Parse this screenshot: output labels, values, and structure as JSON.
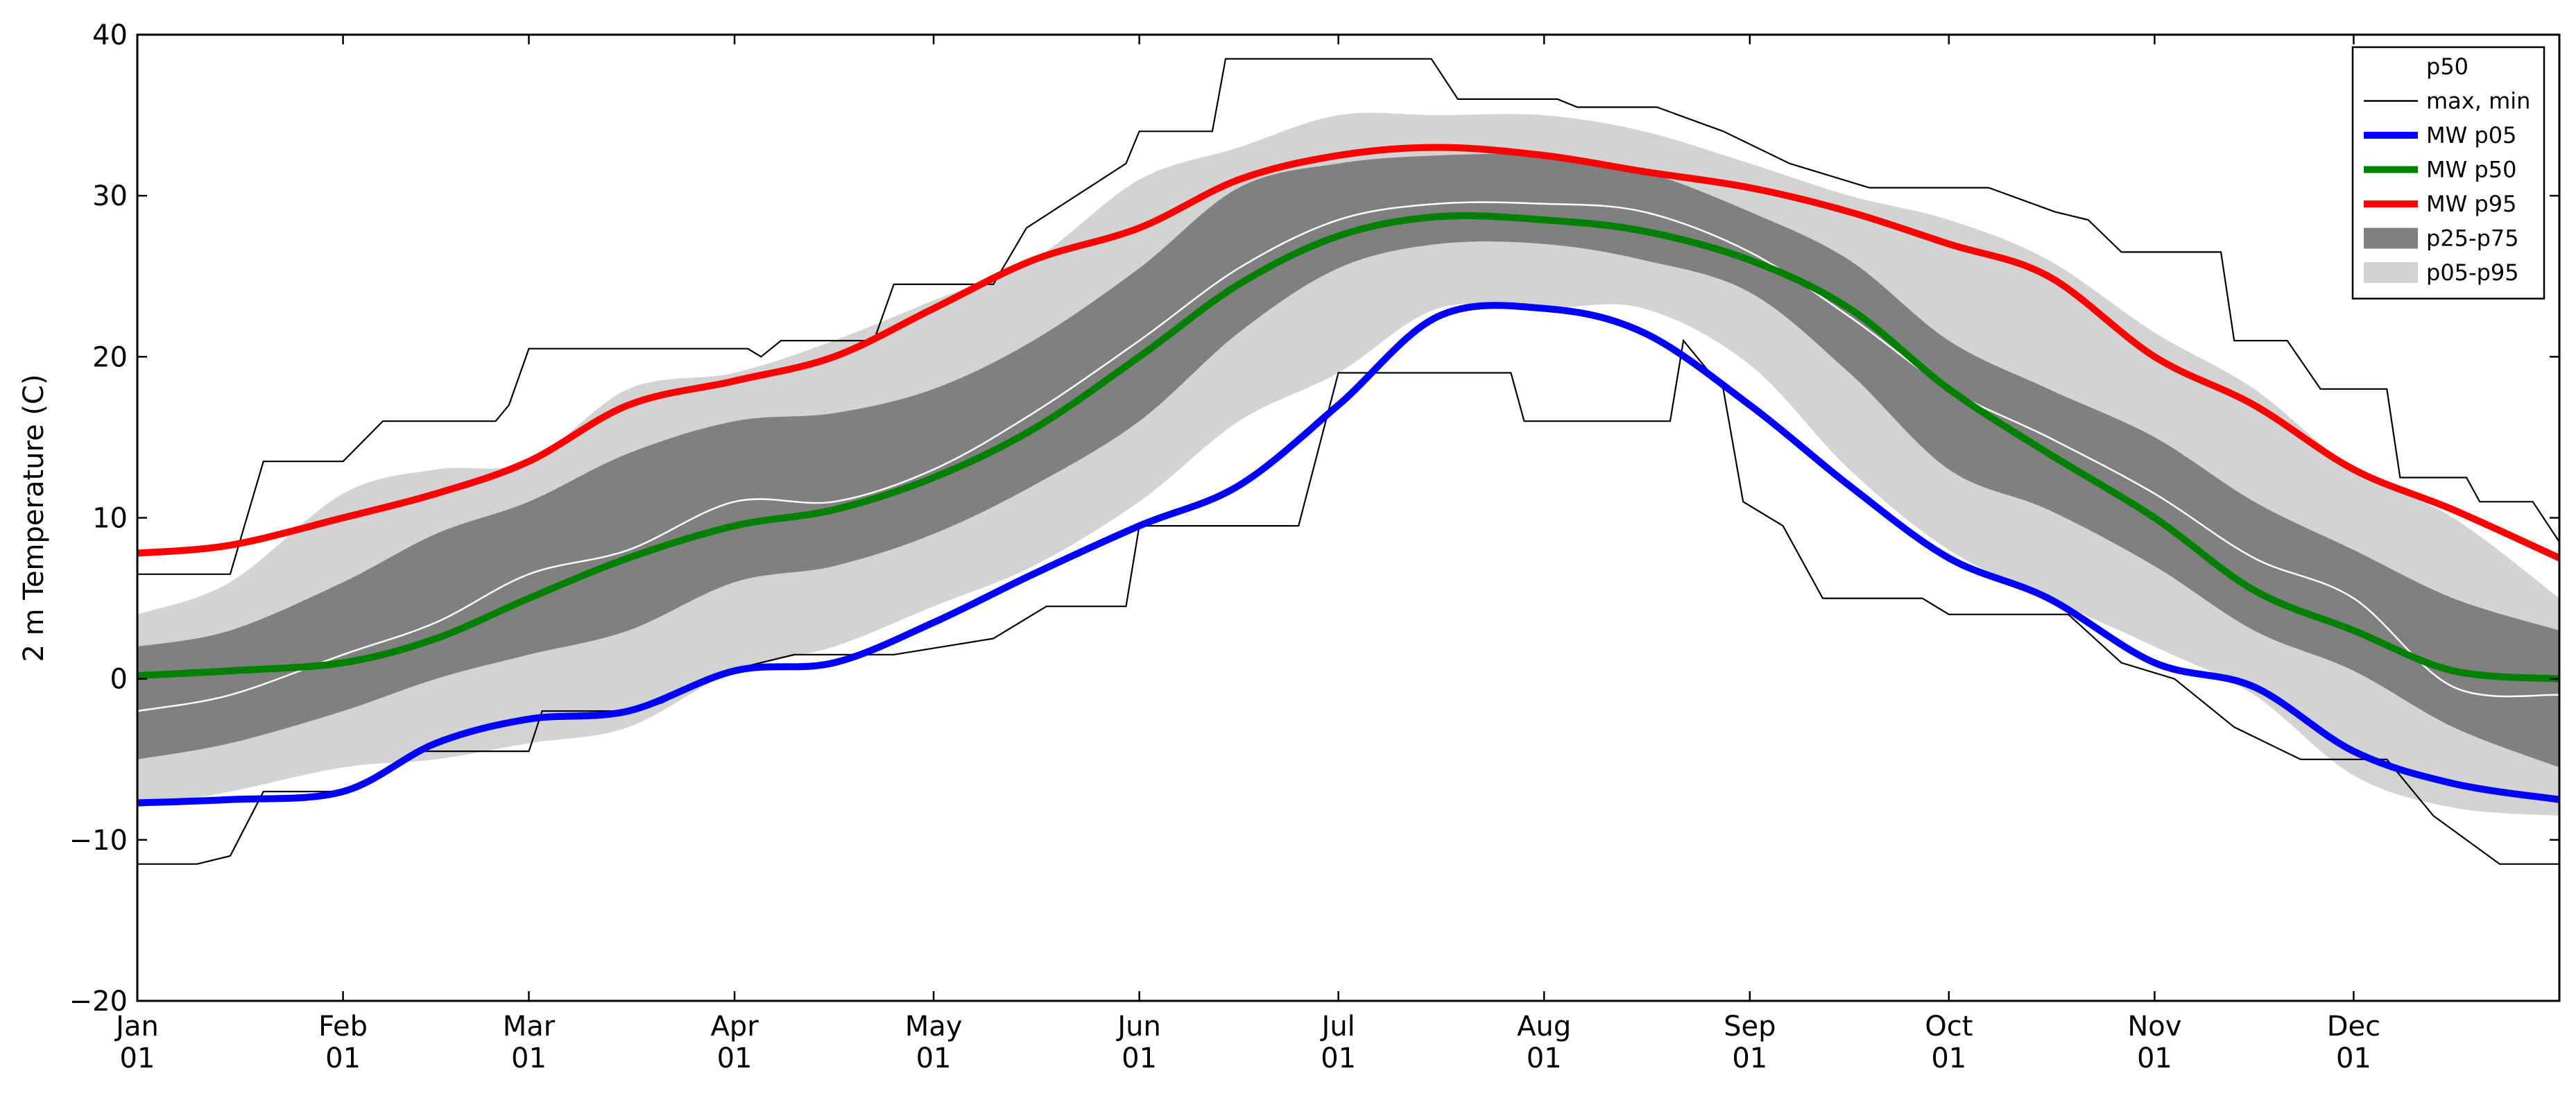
{
  "chart_data": {
    "type": "line",
    "ylabel": "2 m Temperature (C)",
    "xlabel": "",
    "title": "",
    "ylim": [
      -20,
      40
    ],
    "xlim": [
      1,
      366
    ],
    "yticks": [
      -20,
      -10,
      0,
      10,
      20,
      30,
      40
    ],
    "xticks": [
      {
        "day": 1,
        "month": "Jan",
        "dom": "01"
      },
      {
        "day": 32,
        "month": "Feb",
        "dom": "01"
      },
      {
        "day": 60,
        "month": "Mar",
        "dom": "01"
      },
      {
        "day": 91,
        "month": "Apr",
        "dom": "01"
      },
      {
        "day": 121,
        "month": "May",
        "dom": "01"
      },
      {
        "day": 152,
        "month": "Jun",
        "dom": "01"
      },
      {
        "day": 182,
        "month": "Jul",
        "dom": "01"
      },
      {
        "day": 213,
        "month": "Aug",
        "dom": "01"
      },
      {
        "day": 244,
        "month": "Sep",
        "dom": "01"
      },
      {
        "day": 274,
        "month": "Oct",
        "dom": "01"
      },
      {
        "day": 305,
        "month": "Nov",
        "dom": "01"
      },
      {
        "day": 335,
        "month": "Dec",
        "dom": "01"
      }
    ],
    "grid": false,
    "legend_position": "top-right",
    "legend": [
      {
        "label": "p50",
        "kind": "line",
        "color": "#ffffff"
      },
      {
        "label": "max, min",
        "kind": "line",
        "color": "#000000"
      },
      {
        "label": "MW p05",
        "kind": "line",
        "color": "#0000ff"
      },
      {
        "label": "MW p50",
        "kind": "line",
        "color": "#008000"
      },
      {
        "label": "MW p95",
        "kind": "line",
        "color": "#ff0000"
      },
      {
        "label": "p25-p75",
        "kind": "band",
        "color": "#808080"
      },
      {
        "label": "p05-p95",
        "kind": "band",
        "color": "#d3d3d3"
      }
    ],
    "x": [
      1,
      15,
      32,
      46,
      60,
      75,
      91,
      106,
      121,
      136,
      152,
      167,
      182,
      197,
      213,
      228,
      244,
      259,
      274,
      289,
      305,
      320,
      335,
      350,
      366
    ],
    "series": [
      {
        "name": "MW p95",
        "color": "#ff0000",
        "width": 10,
        "values": [
          7.8,
          8.3,
          10.0,
          11.5,
          13.5,
          17.0,
          18.5,
          20.0,
          23.0,
          26.0,
          28.0,
          31.0,
          32.5,
          33.0,
          32.5,
          31.5,
          30.5,
          29.0,
          27.0,
          25.0,
          20.0,
          17.0,
          13.0,
          10.5,
          7.5
        ]
      },
      {
        "name": "MW p50",
        "color": "#008000",
        "width": 10,
        "values": [
          0.2,
          0.5,
          1.0,
          2.5,
          5.0,
          7.5,
          9.5,
          10.5,
          12.5,
          15.5,
          20.0,
          24.5,
          27.5,
          28.7,
          28.5,
          27.8,
          26.0,
          23.0,
          18.0,
          14.0,
          10.0,
          5.5,
          3.0,
          0.5,
          0.0
        ]
      },
      {
        "name": "MW p05",
        "color": "#0000ff",
        "width": 10,
        "values": [
          -7.7,
          -7.5,
          -7.0,
          -4.0,
          -2.5,
          -2.0,
          0.5,
          1.0,
          3.5,
          6.5,
          9.5,
          12.0,
          17.0,
          22.5,
          23.0,
          21.5,
          17.0,
          12.0,
          7.5,
          5.0,
          1.0,
          -0.5,
          -4.5,
          -6.5,
          -7.5
        ]
      },
      {
        "name": "p50",
        "color": "#ffffff",
        "width": 2.5,
        "values": [
          -2.0,
          -1.0,
          1.5,
          3.5,
          6.5,
          8.0,
          11.0,
          11.0,
          13.0,
          16.5,
          21.0,
          25.5,
          28.5,
          29.5,
          29.5,
          29.0,
          26.5,
          22.5,
          18.0,
          15.0,
          11.5,
          7.5,
          5.0,
          -0.5,
          -1.0
        ]
      }
    ],
    "bands": [
      {
        "name": "p05-p95",
        "color": "#d3d3d3",
        "upper": [
          4.0,
          6.0,
          11.5,
          13.0,
          13.5,
          18.0,
          19.0,
          21.0,
          23.5,
          26.0,
          31.0,
          33.0,
          35.0,
          35.0,
          35.0,
          34.0,
          32.0,
          30.0,
          28.5,
          26.0,
          21.5,
          18.0,
          13.0,
          10.0,
          5.0
        ],
        "lower": [
          -8.0,
          -7.0,
          -5.5,
          -5.0,
          -4.0,
          -3.0,
          0.5,
          2.0,
          4.5,
          7.0,
          11.0,
          16.0,
          19.0,
          23.0,
          23.0,
          23.0,
          19.5,
          13.0,
          8.0,
          5.0,
          2.0,
          -1.0,
          -6.0,
          -8.0,
          -8.5
        ]
      },
      {
        "name": "p25-p75",
        "color": "#808080",
        "upper": [
          2.0,
          3.0,
          6.0,
          9.0,
          11.0,
          14.0,
          16.0,
          16.5,
          18.0,
          21.0,
          25.5,
          30.5,
          32.0,
          32.5,
          32.5,
          31.5,
          29.0,
          26.0,
          21.0,
          18.0,
          15.0,
          11.0,
          8.0,
          5.0,
          3.0
        ],
        "lower": [
          -5.0,
          -4.0,
          -2.0,
          0.0,
          1.5,
          3.0,
          6.0,
          7.0,
          9.0,
          12.0,
          16.0,
          21.5,
          25.5,
          27.0,
          27.0,
          26.0,
          24.0,
          19.0,
          13.0,
          10.5,
          7.0,
          3.0,
          0.5,
          -3.0,
          -5.5
        ]
      }
    ],
    "extremes": {
      "name": "max, min",
      "color": "#000000",
      "max": [
        [
          1,
          6.5
        ],
        [
          7,
          6.5
        ],
        [
          15,
          6.5
        ],
        [
          20,
          13.5
        ],
        [
          32,
          13.5
        ],
        [
          38,
          16.0
        ],
        [
          55,
          16.0
        ],
        [
          57,
          17.0
        ],
        [
          60,
          20.5
        ],
        [
          93,
          20.5
        ],
        [
          95,
          20.0
        ],
        [
          98,
          21.0
        ],
        [
          112,
          21.0
        ],
        [
          115,
          24.5
        ],
        [
          130,
          24.5
        ],
        [
          135,
          28.0
        ],
        [
          150,
          32.0
        ],
        [
          152,
          34.0
        ],
        [
          163,
          34.0
        ],
        [
          165,
          38.5
        ],
        [
          196,
          38.5
        ],
        [
          200,
          36.0
        ],
        [
          215,
          36.0
        ],
        [
          218,
          35.5
        ],
        [
          230,
          35.5
        ],
        [
          240,
          34.0
        ],
        [
          250,
          32.0
        ],
        [
          262,
          30.5
        ],
        [
          280,
          30.5
        ],
        [
          290,
          29.0
        ],
        [
          295,
          28.5
        ],
        [
          300,
          26.5
        ],
        [
          315,
          26.5
        ],
        [
          317,
          21.0
        ],
        [
          325,
          21.0
        ],
        [
          330,
          18.0
        ],
        [
          340,
          18.0
        ],
        [
          342,
          12.5
        ],
        [
          352,
          12.5
        ],
        [
          354,
          11.0
        ],
        [
          362,
          11.0
        ],
        [
          366,
          8.5
        ]
      ],
      "min": [
        [
          1,
          -11.5
        ],
        [
          10,
          -11.5
        ],
        [
          15,
          -11.0
        ],
        [
          20,
          -7.0
        ],
        [
          33,
          -7.0
        ],
        [
          43,
          -4.5
        ],
        [
          57,
          -4.5
        ],
        [
          60,
          -4.5
        ],
        [
          62,
          -2.0
        ],
        [
          75,
          -2.0
        ],
        [
          80,
          -1.5
        ],
        [
          90,
          0.5
        ],
        [
          100,
          1.5
        ],
        [
          115,
          1.5
        ],
        [
          130,
          2.5
        ],
        [
          138,
          4.5
        ],
        [
          150,
          4.5
        ],
        [
          152,
          9.5
        ],
        [
          165,
          9.5
        ],
        [
          176,
          9.5
        ],
        [
          182,
          19.0
        ],
        [
          208,
          19.0
        ],
        [
          210,
          16.0
        ],
        [
          232,
          16.0
        ],
        [
          234,
          21.0
        ],
        [
          240,
          18.0
        ],
        [
          243,
          11.0
        ],
        [
          249,
          9.5
        ],
        [
          255,
          5.0
        ],
        [
          270,
          5.0
        ],
        [
          274,
          4.0
        ],
        [
          292,
          4.0
        ],
        [
          300,
          1.0
        ],
        [
          308,
          0.0
        ],
        [
          317,
          -3.0
        ],
        [
          327,
          -5.0
        ],
        [
          340,
          -5.0
        ],
        [
          347,
          -8.5
        ],
        [
          357,
          -11.5
        ],
        [
          366,
          -11.5
        ]
      ]
    }
  }
}
